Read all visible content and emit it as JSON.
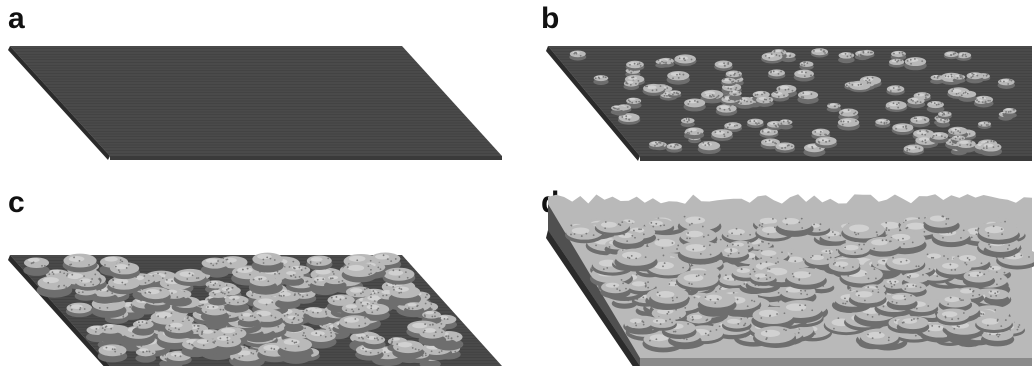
{
  "panels": [
    {
      "label": "a",
      "coverage": 0.0,
      "islands": 0,
      "relief": 0
    },
    {
      "label": "b",
      "coverage": 0.35,
      "islands": 120,
      "relief": 1
    },
    {
      "label": "c",
      "coverage": 0.85,
      "islands": 190,
      "relief": 2
    },
    {
      "label": "d",
      "coverage": 1.0,
      "islands": 260,
      "relief": 3
    }
  ],
  "colors": {
    "substrate": "#4a4a4a",
    "substrate_edge": "#2b2b2b",
    "substrate_front": "#3a3a3a",
    "deposit": "#b9b9b9",
    "deposit_shadow": "#6e6e6e",
    "deposit_light": "#dcdcdc",
    "background": "#ffffff"
  }
}
